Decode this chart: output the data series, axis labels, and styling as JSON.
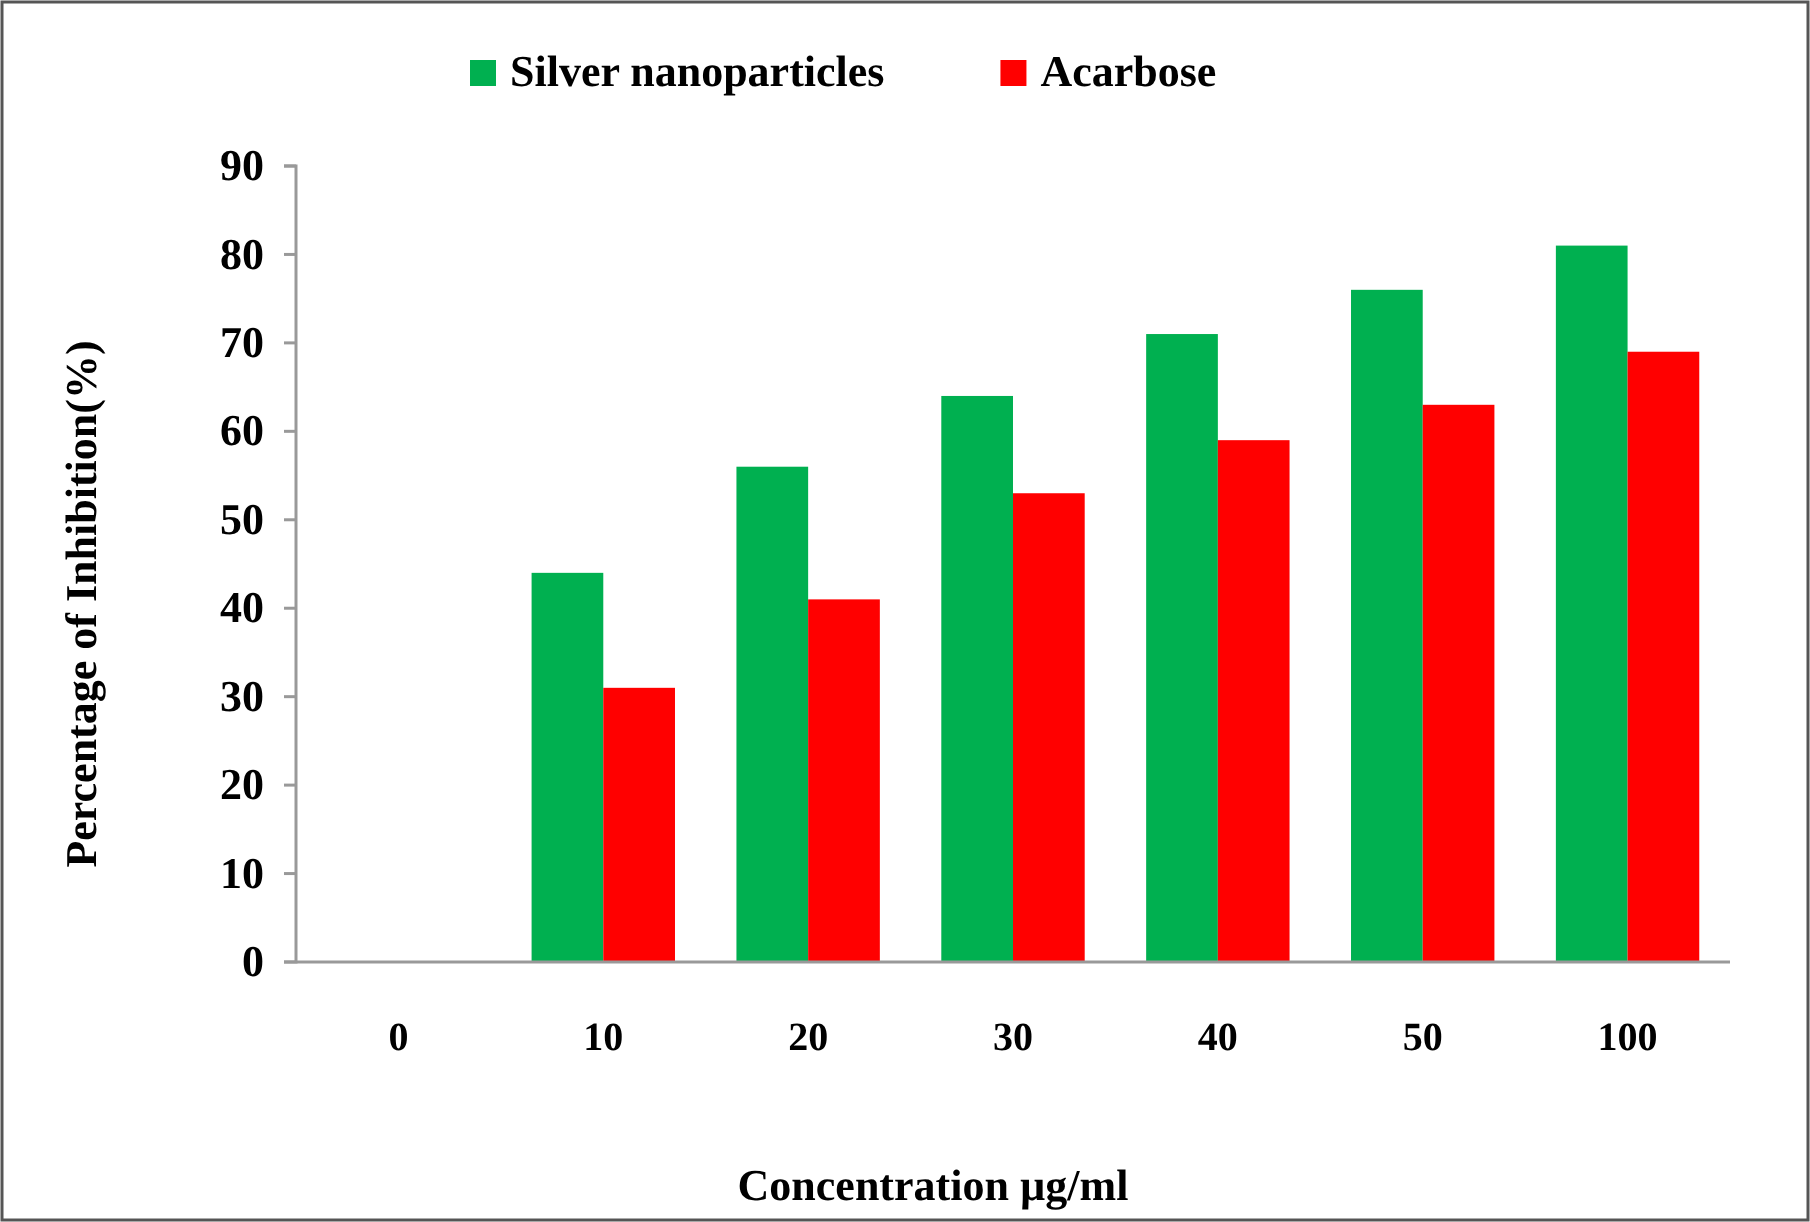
{
  "chart_data": {
    "type": "bar",
    "xlabel": "Concentration  µg/ml",
    "ylabel": "Percentage of Inhibition(%)",
    "categories": [
      "0",
      "10",
      "20",
      "30",
      "40",
      "50",
      "100"
    ],
    "series": [
      {
        "name": "Silver nanoparticles",
        "color": "#00b050",
        "values": [
          0,
          44,
          56,
          64,
          71,
          76,
          81
        ]
      },
      {
        "name": "Acarbose",
        "color": "#ff0000",
        "values": [
          0,
          31,
          41,
          53,
          59,
          63,
          69
        ]
      }
    ],
    "ylim": [
      0,
      90
    ],
    "yticks": [
      0,
      10,
      20,
      30,
      40,
      50,
      60,
      70,
      80,
      90
    ],
    "grid": false,
    "legend": "top"
  }
}
